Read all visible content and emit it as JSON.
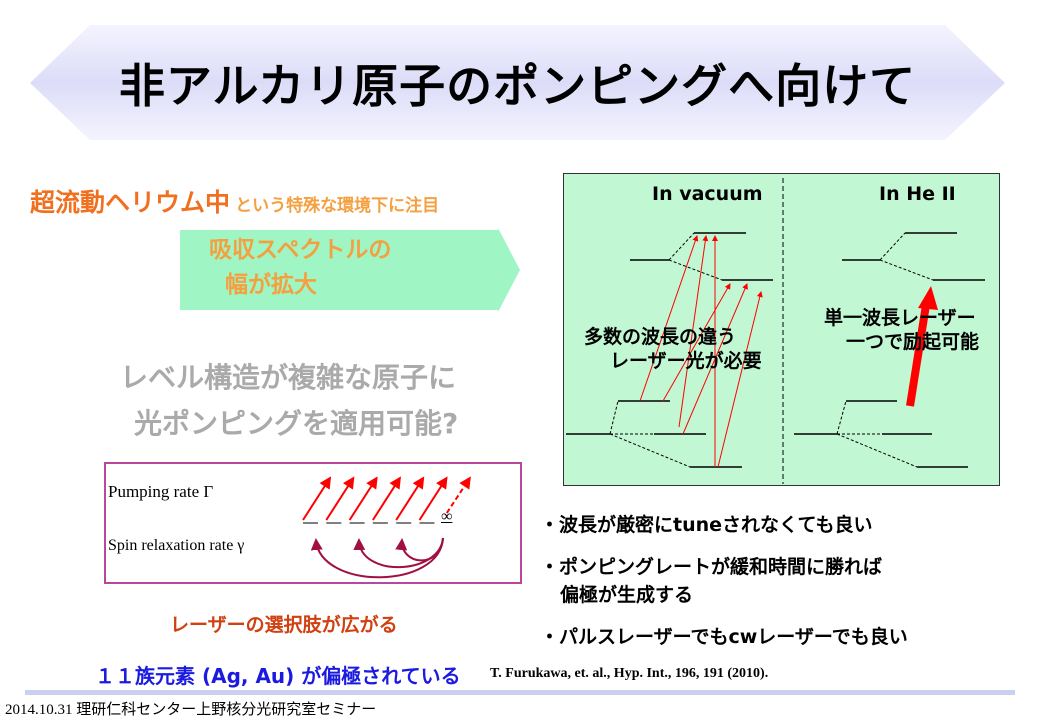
{
  "slide": {
    "title": "非アルカリ原子のポンピングへ向けて",
    "lead_big": "超流動ヘリウム中",
    "lead_small": "という特殊な環境下に注目",
    "arrow_line1": "吸収スペクトルの",
    "arrow_line2": "幅が拡大",
    "question_line1": "レベル構造が複雑な原子に",
    "question_line2": "光ポンピングを適用可能?",
    "diagram": {
      "left_label": "In vacuum",
      "right_label": "In He II",
      "left_note_line1": "多数の波長の違う",
      "left_note_line2": "レーザー光が必要",
      "right_note_line1": "単一波長レーザー",
      "right_note_line2": "一つで励起可能",
      "arrow_color": "#ff0000",
      "background": "#c2f7d4"
    },
    "pumping": {
      "pumping_label": "Pumping rate Γ",
      "relaxation_label": "Spin relaxation rate γ",
      "infinity": "∞"
    },
    "laser_choice": "レーザーの選択肢が広がる",
    "bullets": [
      "・波長が厳密にtuneされなくても良い",
      "・ポンピングレートが緩和時間に勝れば",
      "偏極が生成する",
      "・パルスレーザーでもcwレーザーでも良い"
    ],
    "group11": "１１族元素 (Ag, Au) が偏極されている",
    "reference": "T. Furukawa, et. al., Hyp. Int., 196, 191 (2010).",
    "footer": "2014.10.31 理研仁科センター上野核分光研究室セミナー"
  }
}
